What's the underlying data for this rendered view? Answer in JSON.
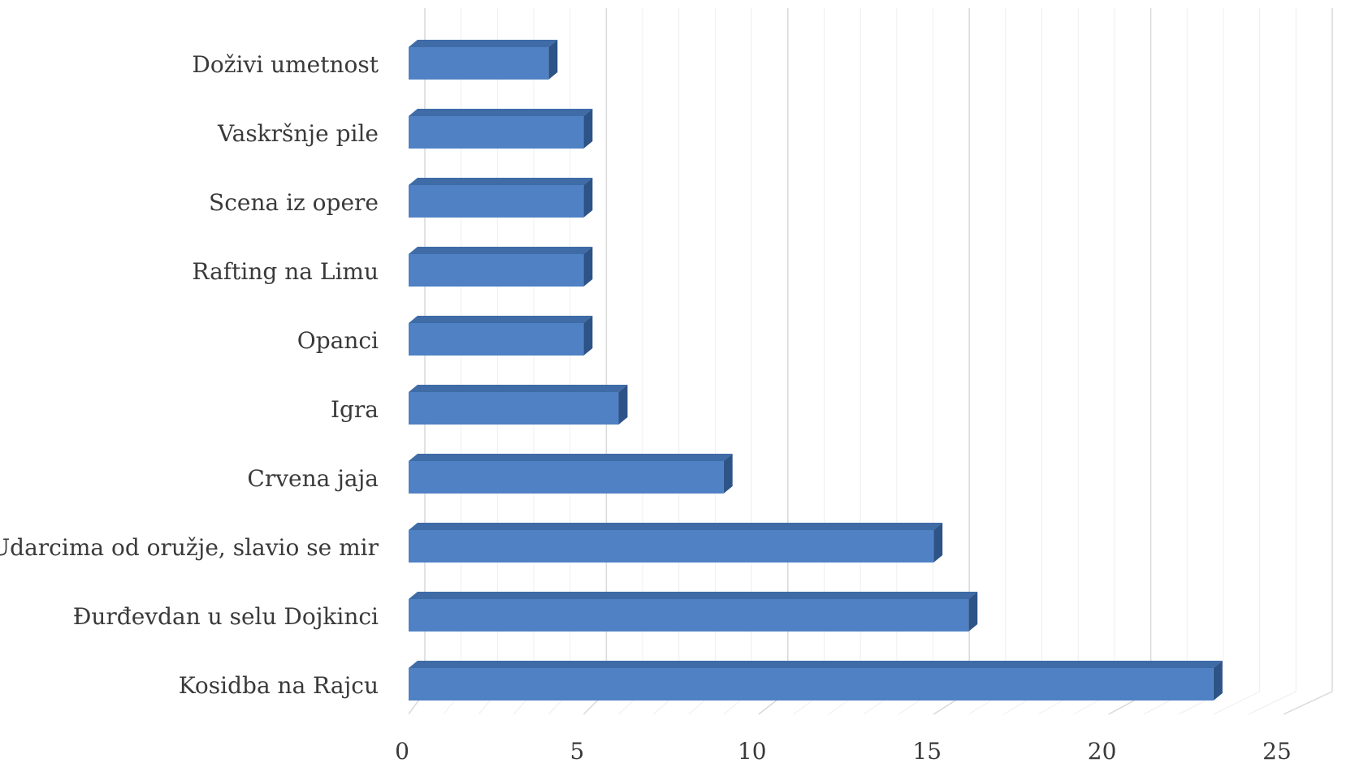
{
  "chart_data": {
    "type": "bar",
    "orientation": "horizontal",
    "style": "3d",
    "title": "",
    "xlabel": "",
    "ylabel": "",
    "categories": [
      "Doživi umetnost",
      "Vaskršnje pile",
      "Scena iz opere",
      "Rafting na Limu",
      "Opanci",
      "Igra",
      "Crvena jaja",
      "Udarcima od oružje, slavio se mir",
      "Đurđevdan u selu Dojkinci",
      "Kosidba na Rajcu"
    ],
    "values": [
      4,
      5,
      5,
      5,
      5,
      6,
      9,
      15,
      16,
      23
    ],
    "xlim": [
      0,
      25
    ],
    "xticks": [
      "0",
      "5",
      "10",
      "15",
      "20",
      "25"
    ],
    "grid": true,
    "legend": "none",
    "colors": {
      "bar_front": "#4f81c4",
      "bar_top": "#3f6ba6",
      "bar_side": "#2e5386",
      "grid": "#d9d9d9"
    }
  }
}
